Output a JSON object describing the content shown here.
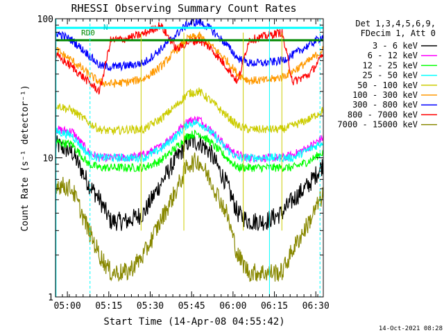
{
  "chart_data": {
    "type": "line",
    "title": "RHESSI Observing Summary Count Rates",
    "xlabel": "Start Time (14-Apr-08 04:55:42)",
    "ylabel": "Count Rate (s⁻¹ detector⁻¹)",
    "yscale": "log",
    "ylim": [
      1,
      100
    ],
    "xlim_minutes_after_start": [
      0,
      97
    ],
    "x_ticks": [
      {
        "label": "05:00",
        "minute": 4.3
      },
      {
        "label": "05:15",
        "minute": 19.3
      },
      {
        "label": "05:30",
        "minute": 34.3
      },
      {
        "label": "05:45",
        "minute": 49.3
      },
      {
        "label": "06:00",
        "minute": 64.3
      },
      {
        "label": "06:15",
        "minute": 79.3
      },
      {
        "label": "06:30",
        "minute": 94.3
      }
    ],
    "y_ticks": [
      {
        "label": "1",
        "value": 1
      },
      {
        "label": "10",
        "value": 10
      },
      {
        "label": "100",
        "value": 100
      }
    ],
    "legend_header": [
      "Det 1,3,4,5,6,9,",
      "FDecim 1, Att 0"
    ],
    "legend_placement": "right",
    "annotations": {
      "rd0": "RD0",
      "n": "N"
    },
    "timestamp": "14-Oct-2021 08:28",
    "x_minutes": [
      0,
      6,
      12,
      16,
      20,
      26,
      32,
      38,
      44,
      48,
      52,
      56,
      62,
      66,
      70,
      76,
      82,
      86,
      92,
      97
    ],
    "series": [
      {
        "name": "3 - 6 keV",
        "color": "#000000",
        "values": [
          12.5,
          11,
          6.5,
          5,
          3.5,
          3.5,
          4,
          6.5,
          10,
          13,
          13,
          11,
          6.5,
          4,
          3.5,
          3.5,
          4,
          5,
          6.5,
          9
        ]
      },
      {
        "name": "6 - 12 keV",
        "color": "#ff00ff",
        "values": [
          16,
          15.5,
          11,
          10,
          10,
          10,
          10.5,
          12,
          15.5,
          18.5,
          19,
          16,
          12,
          10.5,
          10,
          10,
          10,
          10.5,
          12,
          14
        ]
      },
      {
        "name": "12 - 25 keV",
        "color": "#00ff00",
        "values": [
          13,
          12.5,
          9,
          8.5,
          8.5,
          8.5,
          8.5,
          9.5,
          12,
          14.5,
          15,
          13,
          10,
          8.5,
          8.5,
          8.5,
          8.5,
          8.5,
          9.5,
          11
        ]
      },
      {
        "name": "25 - 50 keV",
        "color": "#00ffff",
        "values": [
          15.5,
          14.5,
          10.5,
          10,
          10,
          10,
          10,
          11.5,
          14.5,
          17.5,
          18,
          15.5,
          11.5,
          10,
          10,
          10,
          10,
          10,
          11.5,
          13
        ]
      },
      {
        "name": "50 - 100 keV",
        "color": "#cccc00",
        "values": [
          24,
          22,
          18,
          16,
          15.5,
          16,
          16,
          19,
          24,
          29,
          30,
          26,
          20,
          17,
          16,
          16,
          16,
          17,
          19,
          22
        ]
      },
      {
        "name": "100 - 300 keV",
        "color": "#ff9900",
        "values": [
          60,
          50,
          40,
          35,
          34,
          35,
          37,
          45,
          60,
          72,
          75,
          65,
          50,
          40,
          36,
          36,
          38,
          42,
          50,
          60
        ]
      },
      {
        "name": "300 - 800 keV",
        "color": "#0000ff",
        "values": [
          80,
          70,
          55,
          46,
          45,
          46,
          48,
          60,
          78,
          92,
          95,
          85,
          65,
          52,
          48,
          48,
          50,
          55,
          65,
          75
        ]
      },
      {
        "name": "800 - 7000 keV",
        "color": "#ff0000",
        "values": [
          55,
          45,
          35,
          30,
          70,
          72,
          78,
          90,
          60,
          68,
          70,
          62,
          45,
          35,
          70,
          75,
          80,
          35,
          40,
          55
        ]
      },
      {
        "name": "7000 - 15000 keV",
        "color": "#888800",
        "values": [
          6.5,
          6,
          3,
          2,
          1.5,
          1.5,
          2,
          3.5,
          6,
          9,
          9.5,
          7,
          4,
          2,
          1.5,
          1.5,
          1.5,
          2.2,
          3.5,
          5.5
        ]
      }
    ],
    "flags": [
      {
        "name": "RD0",
        "color": "#008800",
        "value": 70
      },
      {
        "name": "N",
        "color": "#00ffff",
        "value": 86
      }
    ]
  }
}
